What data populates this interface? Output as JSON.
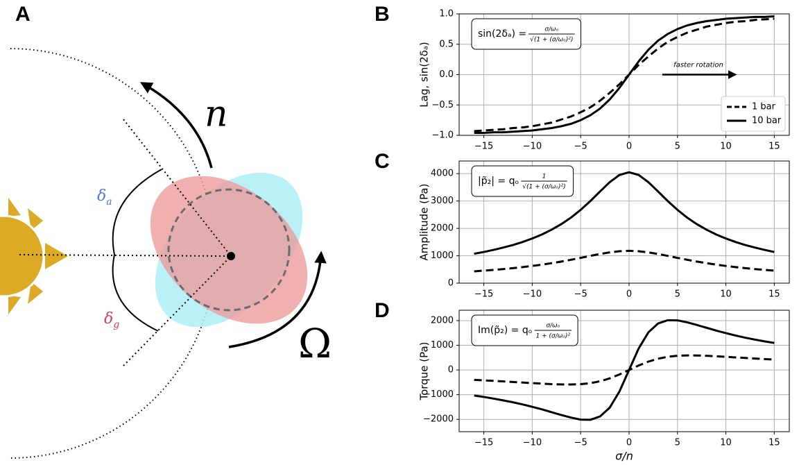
{
  "panel_a": {
    "label": "A",
    "n": "n",
    "omega": "Ω",
    "delta_a": {
      "symbol": "δ",
      "subscript": "a"
    },
    "delta_g": {
      "symbol": "δ",
      "subscript": "g"
    }
  },
  "chart_data": [
    {
      "type": "line",
      "panel_label": "B",
      "ylabel": "Lag, sin(2δₐ)",
      "formula": {
        "lhs": "sin(2δₐ) = ",
        "num": "σ/ωₒ",
        "den": "√(1 + (σ/ωₒ)²)"
      },
      "arrow_text": "faster rotation",
      "legend": "lower right",
      "grid": true,
      "x": [
        -16,
        -15,
        -14,
        -13,
        -12,
        -11,
        -10,
        -9,
        -8,
        -7,
        -6,
        -5,
        -4,
        -3,
        -2,
        -1,
        0,
        1,
        2,
        3,
        4,
        5,
        6,
        7,
        8,
        9,
        10,
        11,
        12,
        13,
        14,
        15
      ],
      "series": [
        {
          "name": "1 bar",
          "color": "#000000",
          "linestyle": "dashed",
          "values": [
            -0.93,
            -0.92,
            -0.91,
            -0.9,
            -0.88,
            -0.87,
            -0.85,
            -0.82,
            -0.79,
            -0.74,
            -0.69,
            -0.62,
            -0.54,
            -0.43,
            -0.3,
            -0.16,
            0,
            0.16,
            0.3,
            0.43,
            0.54,
            0.62,
            0.69,
            0.74,
            0.79,
            0.82,
            0.85,
            0.87,
            0.88,
            0.9,
            0.91,
            0.92
          ]
        },
        {
          "name": "10 bar",
          "color": "#000000",
          "linestyle": "solid",
          "values": [
            -0.96,
            -0.96,
            -0.95,
            -0.95,
            -0.94,
            -0.93,
            -0.92,
            -0.9,
            -0.88,
            -0.85,
            -0.81,
            -0.75,
            -0.67,
            -0.56,
            -0.41,
            -0.22,
            0,
            0.22,
            0.41,
            0.56,
            0.67,
            0.75,
            0.81,
            0.85,
            0.88,
            0.9,
            0.92,
            0.93,
            0.94,
            0.95,
            0.95,
            0.96
          ]
        }
      ],
      "xlim": [
        -17.55,
        16.55
      ],
      "ylim": [
        -1,
        1
      ],
      "xticks": [
        {
          "value": -15,
          "label": "−15"
        },
        {
          "value": -10,
          "label": "−10"
        },
        {
          "value": -5,
          "label": "−5"
        },
        0,
        5,
        10,
        15
      ],
      "yticks": [
        {
          "value": -1,
          "label": "−1.0"
        },
        {
          "value": -0.5,
          "label": "−0.5"
        },
        {
          "value": 0,
          "label": "0.0"
        },
        {
          "value": 0.5,
          "label": "0.5"
        },
        {
          "value": 1,
          "label": "1.0"
        }
      ]
    },
    {
      "type": "line",
      "panel_label": "C",
      "ylabel": "Amplitude (Pa)",
      "formula": {
        "lhs": "|p̃₂| = qₒ",
        "num": "1",
        "den": "√(1 + (σ/ωₒ)²)"
      },
      "grid": true,
      "x": [
        -16,
        -15,
        -14,
        -13,
        -12,
        -11,
        -10,
        -9,
        -8,
        -7,
        -6,
        -5,
        -4,
        -3,
        -2,
        -1,
        0,
        1,
        2,
        3,
        4,
        5,
        6,
        7,
        8,
        9,
        10,
        11,
        12,
        13,
        14,
        15
      ],
      "series": [
        {
          "color": "#000000",
          "linestyle": "dashed",
          "values": [
            432,
            457,
            484,
            514,
            549,
            586,
            629,
            676,
            730,
            789,
            854,
            924,
            996,
            1066,
            1125,
            1166,
            1180,
            1166,
            1125,
            1066,
            996,
            924,
            854,
            789,
            730,
            676,
            629,
            586,
            549,
            514,
            484,
            457
          ]
        },
        {
          "color": "#000000",
          "linestyle": "solid",
          "values": [
            1073,
            1138,
            1215,
            1300,
            1393,
            1503,
            1632,
            1778,
            1952,
            2155,
            2394,
            2677,
            2997,
            3346,
            3686,
            3949,
            4050,
            3949,
            3686,
            3346,
            2997,
            2677,
            2394,
            2155,
            1952,
            1778,
            1632,
            1503,
            1393,
            1300,
            1215,
            1138
          ]
        }
      ],
      "xlim": [
        -17.55,
        16.55
      ],
      "ylim": [
        0,
        4460
      ],
      "xticks": [
        {
          "value": -15,
          "label": "−15"
        },
        {
          "value": -10,
          "label": "−10"
        },
        {
          "value": -5,
          "label": "−5"
        },
        0,
        5,
        10,
        15
      ],
      "yticks": [
        0,
        1000,
        2000,
        3000,
        4000
      ]
    },
    {
      "type": "line",
      "panel_label": "D",
      "ylabel": "Torque (Pa)",
      "xlabel": "σ/n",
      "formula": {
        "lhs": "Im(p̃₂) = qₒ",
        "num": "σ/ωₒ",
        "den": "1 + (σ/ωₒ)²"
      },
      "grid": true,
      "x": [
        -16,
        -15,
        -14,
        -13,
        -12,
        -11,
        -10,
        -9,
        -8,
        -7,
        -6,
        -5,
        -4,
        -3,
        -2,
        -1,
        0,
        1,
        2,
        3,
        4,
        5,
        6,
        7,
        8,
        9,
        10,
        11,
        12,
        13,
        14,
        15
      ],
      "series": [
        {
          "color": "#000000",
          "linestyle": "dashed",
          "values": [
            -401,
            -421,
            -441,
            -463,
            -486,
            -509,
            -532,
            -554,
            -574,
            -586,
            -590,
            -575,
            -534,
            -458,
            -340,
            -183,
            0,
            183,
            340,
            458,
            534,
            575,
            590,
            586,
            574,
            554,
            532,
            509,
            486,
            463,
            441,
            421
          ]
        },
        {
          "color": "#000000",
          "linestyle": "solid",
          "values": [
            -1035,
            -1093,
            -1159,
            -1231,
            -1308,
            -1395,
            -1493,
            -1596,
            -1710,
            -1825,
            -1929,
            -2010,
            -2017,
            -1884,
            -1526,
            -877,
            0,
            877,
            1526,
            1884,
            2017,
            2010,
            1929,
            1825,
            1710,
            1596,
            1493,
            1395,
            1308,
            1231,
            1159,
            1093
          ]
        }
      ],
      "xlim": [
        -17.55,
        16.55
      ],
      "ylim": [
        -2500,
        2420
      ],
      "xticks": [
        {
          "value": -15,
          "label": "−15"
        },
        {
          "value": -10,
          "label": "−10"
        },
        {
          "value": -5,
          "label": "−5"
        },
        0,
        5,
        10,
        15
      ],
      "yticks": [
        {
          "value": -2000,
          "label": "−2000"
        },
        {
          "value": -1000,
          "label": "−1000"
        },
        0,
        1000,
        2000
      ]
    }
  ]
}
